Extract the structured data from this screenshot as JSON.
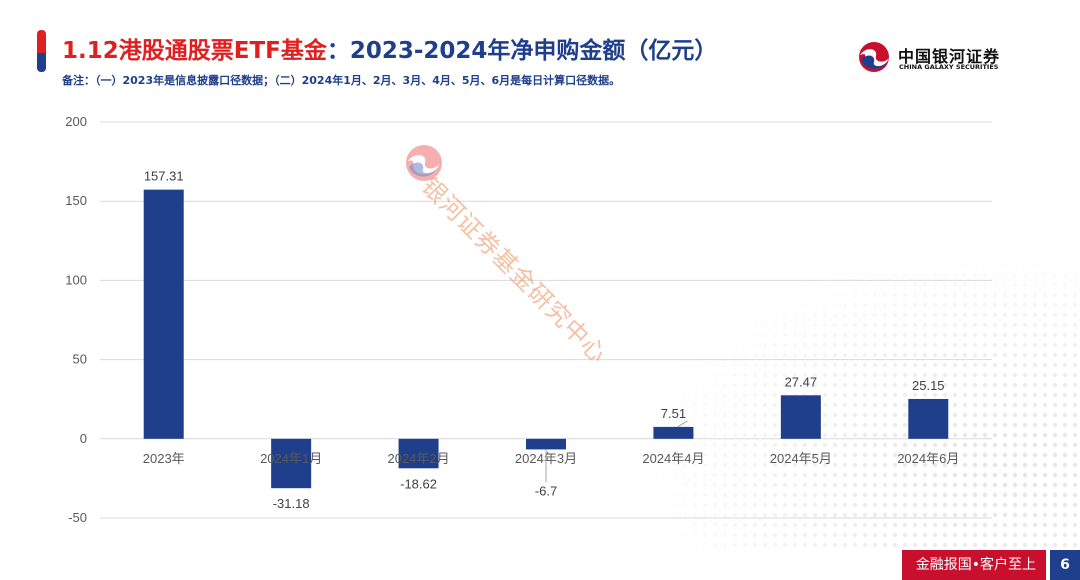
{
  "header": {
    "title_red": "1.12港股通股票ETF基金",
    "title_blue": "：2023-2024年净申购金额（亿元）",
    "note": "备注：（一）2023年是信息披露口径数据；（二）2024年1月、2月、3月、4月、5月、6月是每日计算口径数据。"
  },
  "logo": {
    "name_cn": "中国银河证券",
    "name_en": "CHINA GALAXY SECURITIES"
  },
  "watermark": {
    "text": "银河证券基金研究中心"
  },
  "footer": {
    "slogan": "金融报国•客户至上",
    "page": "6"
  },
  "colors": {
    "bar": "#1f3f8c",
    "accent_red": "#e02020",
    "brand_blue": "#1f3f8c",
    "footer_red": "#c8102e",
    "grid": "#d9d9d9"
  },
  "chart_data": {
    "type": "bar",
    "title": "港股通股票ETF基金：2023-2024年净申购金额（亿元）",
    "xlabel": "",
    "ylabel": "",
    "categories": [
      "2023年",
      "2024年1月",
      "2024年2月",
      "2024年3月",
      "2024年4月",
      "2024年5月",
      "2024年6月"
    ],
    "values": [
      157.31,
      -31.18,
      -18.62,
      -6.7,
      7.51,
      27.47,
      25.15
    ],
    "value_labels": [
      "157.31",
      "-31.18",
      "-18.62",
      "-6.7",
      "7.51",
      "27.47",
      "25.15"
    ],
    "ylim": [
      -50,
      200
    ],
    "yticks": [
      -50,
      0,
      50,
      100,
      150,
      200
    ],
    "ytick_labels": [
      "-50",
      "0",
      "50",
      "100",
      "150",
      "200"
    ],
    "grid": true,
    "legend": "none"
  }
}
